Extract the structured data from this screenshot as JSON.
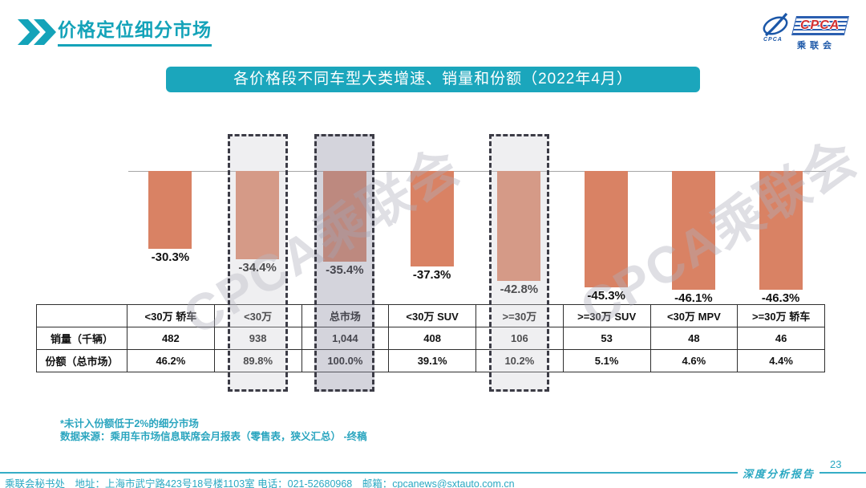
{
  "header": {
    "title": "价格定位细分市场",
    "logo": {
      "cpca": "CPCA",
      "small_label": "CPCA",
      "sub": "乘联会"
    }
  },
  "banner": {
    "title": "各价格段不同车型大类增速、销量和份额（2022年4月）"
  },
  "chart_data": {
    "type": "bar",
    "title": "各价格段不同车型大类增速、销量和份额（2022年4月）",
    "categories": [
      "<30万 轿车",
      "<30万",
      "总市场",
      "<30万 SUV",
      ">=30万",
      ">=30万 SUV",
      "<30万 MPV",
      ">=30万 轿车"
    ],
    "series": [
      {
        "name": "增速",
        "unit": "%",
        "values": [
          -30.3,
          -34.4,
          -35.4,
          -37.3,
          -42.8,
          -45.3,
          -46.1,
          -46.3
        ],
        "labels": [
          "-30.3%",
          "-34.4%",
          "-35.4%",
          "-37.3%",
          "-42.8%",
          "-45.3%",
          "-46.1%",
          "-46.3%"
        ]
      },
      {
        "name": "销量（千辆）",
        "values": [
          482,
          938,
          1044,
          408,
          106,
          53,
          48,
          46
        ],
        "labels": [
          "482",
          "938",
          "1,044",
          "408",
          "106",
          "53",
          "48",
          "46"
        ]
      },
      {
        "name": "份额（总市场）",
        "unit": "%",
        "values": [
          46.2,
          89.8,
          100.0,
          39.1,
          10.2,
          5.1,
          4.6,
          4.4
        ],
        "labels": [
          "46.2%",
          "89.8%",
          "100.0%",
          "39.1%",
          "10.2%",
          "5.1%",
          "4.6%",
          "4.4%"
        ]
      }
    ],
    "baseline": 0,
    "ylim": [
      -50,
      5
    ],
    "grid": false,
    "bar_color": "#D98264",
    "highlighted_columns": [
      {
        "index": 1,
        "category": "<30万",
        "tone": "light"
      },
      {
        "index": 2,
        "category": "总市场",
        "tone": "dark"
      },
      {
        "index": 4,
        "category": ">=30万",
        "tone": "light"
      }
    ]
  },
  "table": {
    "corner_label": ""
  },
  "watermarks": [
    {
      "text": "CPCA乘联会"
    },
    {
      "text": "CPCA乘联会"
    }
  ],
  "footnotes": {
    "line1": "*未计入份额低于2%的细分市场",
    "line2": "数据来源：乘用车市场信息联席会月报表（零售表，狭义汇总） -终稿"
  },
  "footer": {
    "text": "乘联会秘书处　地址：上海市武宁路423号18号楼1103室 电话：021-52680968　邮箱：cpcanews@sxtauto.com.cn",
    "report_label": "深度分析报告",
    "page_number": "23"
  },
  "colors": {
    "accent_teal": "#1BA6BC",
    "bar": "#D98264",
    "logo_blue": "#1B57A8",
    "logo_red": "#D22E2E"
  }
}
